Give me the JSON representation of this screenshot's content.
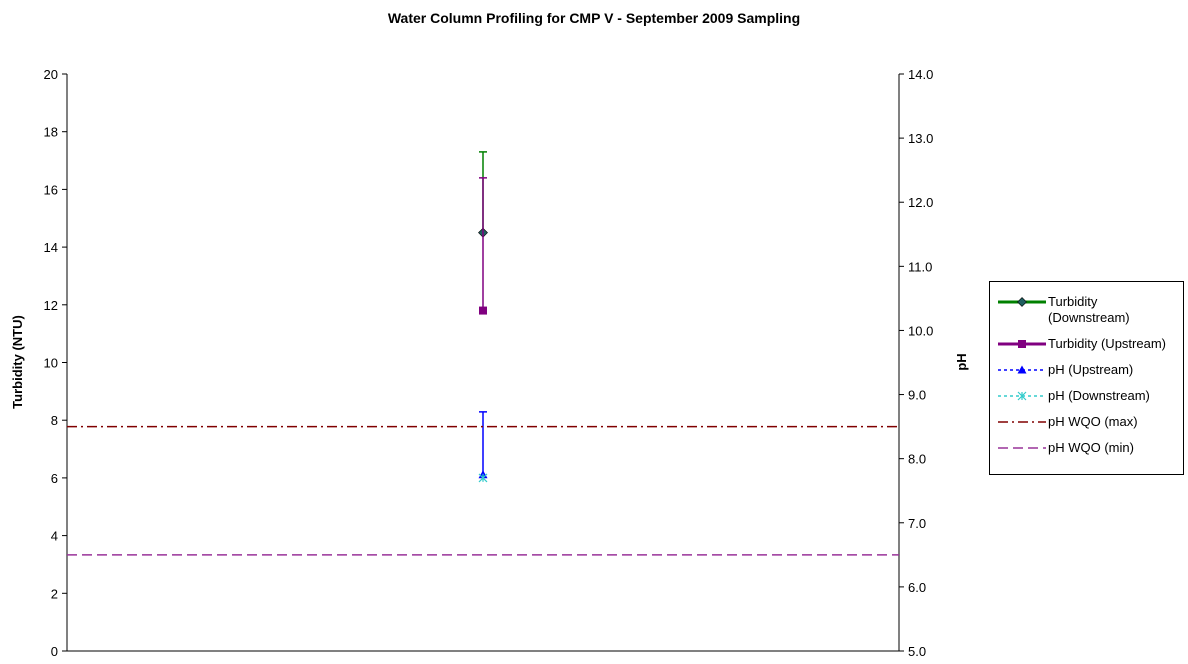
{
  "chart_data": {
    "type": "line",
    "title": "Water Column Profiling for CMP V - September 2009 Sampling",
    "ylabel": "Turbidity (NTU)",
    "y2label": "pH",
    "categories": [
      null
    ],
    "ylim": [
      0,
      20
    ],
    "yticks": [
      0,
      2,
      4,
      6,
      8,
      10,
      12,
      14,
      16,
      18,
      20
    ],
    "y2lim": [
      5,
      14
    ],
    "y2ticks": [
      {
        "value": 5,
        "label": "5.0"
      },
      {
        "value": 6,
        "label": "6.0"
      },
      {
        "value": 7,
        "label": "7.0"
      },
      {
        "value": 8,
        "label": "8.0"
      },
      {
        "value": 9,
        "label": "9.0"
      },
      {
        "value": 10,
        "label": "10.0"
      },
      {
        "value": 11,
        "label": "11.0"
      },
      {
        "value": 12,
        "label": "12.0"
      },
      {
        "value": 13,
        "label": "13.0"
      },
      {
        "value": 14,
        "label": "14.0"
      }
    ],
    "legend": "right",
    "series": [
      {
        "name": "Turbidity (Downstream)",
        "color": "#008000",
        "marker_color": "#1f5f5f",
        "marker": "diamond",
        "dash": "solid",
        "axis": "y",
        "values": [
          14.5
        ],
        "errors": [
          2.8
        ]
      },
      {
        "name": "Turbidity (Upstream)",
        "color": "#800080",
        "marker_color": "#800080",
        "marker": "square",
        "dash": "solid",
        "axis": "y",
        "values": [
          11.8
        ],
        "errors": [
          4.6
        ]
      },
      {
        "name": "pH (Upstream)",
        "color": "#0000ff",
        "marker_color": "#0000ff",
        "marker": "triangle",
        "dash": "dotted",
        "axis": "y2",
        "values": [
          7.75
        ],
        "errors": [
          0.98
        ]
      },
      {
        "name": "pH (Downstream)",
        "color": "#33cccc",
        "marker_color": "#33cccc",
        "marker": "star",
        "dash": "dotted",
        "axis": "y2",
        "values": [
          7.7
        ]
      },
      {
        "name": "pH WQO (max)",
        "color": "#800000",
        "dash": "dashdot",
        "axis": "y2",
        "values": [
          8.5
        ]
      },
      {
        "name": "pH WQO (min)",
        "color": "#993399",
        "dash": "dashed",
        "axis": "y2",
        "values": [
          6.5
        ]
      }
    ]
  }
}
